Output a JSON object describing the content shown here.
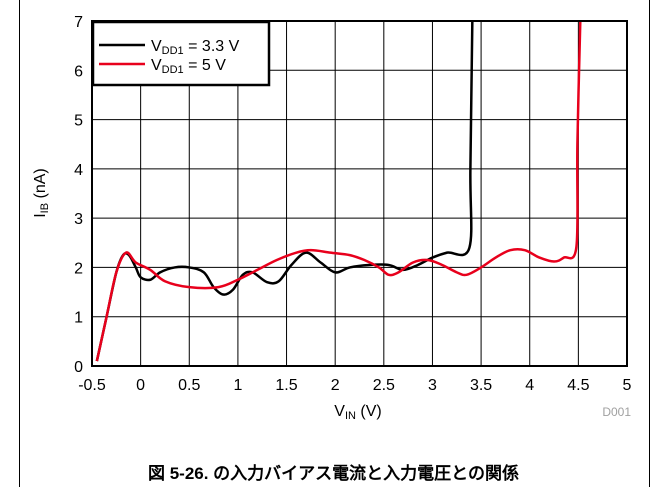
{
  "chart_data": {
    "type": "line",
    "xlabel": {
      "main": "V",
      "sub": "IN",
      "rest": " (V)"
    },
    "ylabel": {
      "main": "I",
      "sub": "IB",
      "rest": " (nA)"
    },
    "xlim": [
      -0.5,
      5
    ],
    "ylim": [
      0,
      7
    ],
    "x_ticks": [
      -0.5,
      0,
      0.5,
      1,
      1.5,
      2,
      2.5,
      3,
      3.5,
      4,
      4.5,
      5
    ],
    "x_tick_labels": [
      "-0.5",
      "0",
      "0.5",
      "1",
      "1.5",
      "2",
      "2.5",
      "3",
      "3.5",
      "4",
      "4.5",
      "5"
    ],
    "y_ticks": [
      0,
      1,
      2,
      3,
      4,
      5,
      6,
      7
    ],
    "y_tick_labels": [
      "0",
      "1",
      "2",
      "3",
      "4",
      "5",
      "6",
      "7"
    ],
    "grid": true,
    "legend_position": "top-left",
    "series": [
      {
        "label_main": "V",
        "label_sub": "DD1",
        "label_rest": " = 3.3 V",
        "color": "#000000",
        "points": [
          [
            -0.45,
            0.1
          ],
          [
            -0.35,
            1.0
          ],
          [
            -0.25,
            1.9
          ],
          [
            -0.18,
            2.25
          ],
          [
            -0.12,
            2.25
          ],
          [
            -0.05,
            2.0
          ],
          [
            0.0,
            1.8
          ],
          [
            0.1,
            1.75
          ],
          [
            0.2,
            1.9
          ],
          [
            0.35,
            2.0
          ],
          [
            0.5,
            2.0
          ],
          [
            0.65,
            1.9
          ],
          [
            0.75,
            1.6
          ],
          [
            0.85,
            1.45
          ],
          [
            0.95,
            1.55
          ],
          [
            1.05,
            1.85
          ],
          [
            1.15,
            1.9
          ],
          [
            1.3,
            1.7
          ],
          [
            1.42,
            1.72
          ],
          [
            1.55,
            2.05
          ],
          [
            1.7,
            2.3
          ],
          [
            1.85,
            2.1
          ],
          [
            2.0,
            1.9
          ],
          [
            2.15,
            2.0
          ],
          [
            2.35,
            2.05
          ],
          [
            2.55,
            2.05
          ],
          [
            2.7,
            1.95
          ],
          [
            2.85,
            2.05
          ],
          [
            3.0,
            2.2
          ],
          [
            3.15,
            2.3
          ],
          [
            3.38,
            2.4
          ],
          [
            3.39,
            4.0
          ],
          [
            3.41,
            7.0
          ]
        ]
      },
      {
        "label_main": "V",
        "label_sub": "DD1",
        "label_rest": " = 5 V",
        "color": "#e8001c",
        "points": [
          [
            -0.45,
            0.1
          ],
          [
            -0.35,
            1.0
          ],
          [
            -0.25,
            1.9
          ],
          [
            -0.15,
            2.3
          ],
          [
            -0.05,
            2.1
          ],
          [
            0.1,
            1.95
          ],
          [
            0.25,
            1.72
          ],
          [
            0.5,
            1.6
          ],
          [
            0.8,
            1.6
          ],
          [
            1.0,
            1.75
          ],
          [
            1.2,
            1.95
          ],
          [
            1.4,
            2.15
          ],
          [
            1.6,
            2.3
          ],
          [
            1.75,
            2.35
          ],
          [
            1.95,
            2.3
          ],
          [
            2.15,
            2.25
          ],
          [
            2.3,
            2.15
          ],
          [
            2.45,
            2.0
          ],
          [
            2.55,
            1.85
          ],
          [
            2.65,
            1.9
          ],
          [
            2.8,
            2.1
          ],
          [
            2.95,
            2.15
          ],
          [
            3.1,
            2.05
          ],
          [
            3.25,
            1.9
          ],
          [
            3.35,
            1.85
          ],
          [
            3.5,
            2.0
          ],
          [
            3.65,
            2.2
          ],
          [
            3.8,
            2.35
          ],
          [
            3.95,
            2.35
          ],
          [
            4.1,
            2.2
          ],
          [
            4.25,
            2.12
          ],
          [
            4.35,
            2.2
          ],
          [
            4.48,
            2.42
          ],
          [
            4.49,
            4.5
          ],
          [
            4.52,
            7.0
          ]
        ]
      }
    ]
  },
  "watermark": "D001",
  "caption": "図 5-26. の入力バイアス電流と入力電圧との関係"
}
